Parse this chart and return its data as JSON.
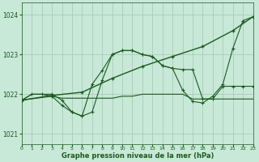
{
  "background_color": "#c8e8d8",
  "grid_color": "#a8cdb8",
  "line_color": "#1a5c1a",
  "title": "Graphe pression niveau de la mer (hPa)",
  "xlim": [
    0,
    23
  ],
  "ylim": [
    1020.75,
    1024.3
  ],
  "yticks": [
    1021,
    1022,
    1023,
    1024
  ],
  "xtick_labels": [
    "0",
    "1",
    "2",
    "3",
    "4",
    "5",
    "6",
    "7",
    "8",
    "9",
    "10",
    "11",
    "12",
    "13",
    "14",
    "15",
    "16",
    "17",
    "18",
    "19",
    "20",
    "21",
    "22",
    "23"
  ],
  "xticks": [
    0,
    1,
    2,
    3,
    4,
    5,
    6,
    7,
    8,
    9,
    10,
    11,
    12,
    13,
    14,
    15,
    16,
    17,
    18,
    19,
    20,
    21,
    22,
    23
  ],
  "line_trend_x": [
    0,
    3,
    6,
    9,
    12,
    15,
    18,
    21,
    23
  ],
  "line_trend_y": [
    1021.85,
    1021.97,
    1022.05,
    1022.4,
    1022.7,
    1022.95,
    1023.2,
    1023.6,
    1023.95
  ],
  "line_wavy_x": [
    0,
    1,
    2,
    3,
    4,
    5,
    6,
    7,
    8,
    9,
    10,
    11,
    12,
    13,
    14,
    15,
    16,
    17,
    18,
    19,
    20,
    21,
    22,
    23
  ],
  "line_wavy_y": [
    1021.85,
    1022.0,
    1022.0,
    1022.0,
    1021.85,
    1021.55,
    1021.45,
    1022.25,
    1022.6,
    1023.0,
    1023.1,
    1023.1,
    1023.0,
    1022.95,
    1022.72,
    1022.65,
    1022.62,
    1022.62,
    1021.88,
    1021.88,
    1022.2,
    1022.2,
    1022.2,
    1022.2
  ],
  "line_flat_x": [
    0,
    1,
    2,
    3,
    4,
    5,
    6,
    7,
    8,
    9,
    10,
    11,
    12,
    13,
    14,
    15,
    16,
    17,
    18,
    19,
    20,
    21,
    22,
    23
  ],
  "line_flat_y": [
    1021.85,
    1022.0,
    1022.0,
    1021.95,
    1021.9,
    1021.9,
    1021.9,
    1021.9,
    1021.9,
    1021.9,
    1021.95,
    1021.95,
    1022.0,
    1022.0,
    1022.0,
    1022.0,
    1022.0,
    1021.88,
    1021.88,
    1021.88,
    1021.88,
    1021.88,
    1021.88,
    1021.88
  ],
  "line_dip_x": [
    0,
    3,
    4,
    5,
    6,
    7,
    8,
    9,
    10,
    11,
    12,
    13,
    14,
    15,
    16,
    17,
    18,
    19,
    20,
    21,
    22,
    23
  ],
  "line_dip_y": [
    1021.85,
    1021.95,
    1021.72,
    1021.55,
    1021.45,
    1021.55,
    1022.35,
    1023.0,
    1023.1,
    1023.1,
    1023.0,
    1022.95,
    1022.72,
    1022.65,
    1022.1,
    1021.82,
    1021.78,
    1021.95,
    1022.25,
    1023.15,
    1023.85,
    1023.95
  ]
}
